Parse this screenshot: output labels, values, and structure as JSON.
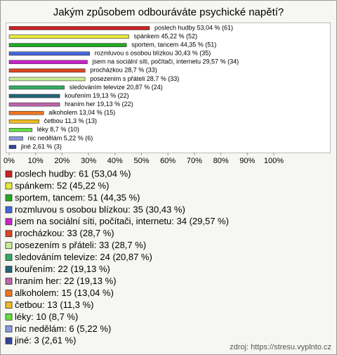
{
  "chart_data": {
    "type": "hbar",
    "title": "Jakým způsobem odbouráváte psychické napětí?",
    "values": [
      53.04,
      45.22,
      44.35,
      30.43,
      29.57,
      28.7,
      28.7,
      20.87,
      19.13,
      19.13,
      13.04,
      11.3,
      8.7,
      5.22,
      2.61
    ],
    "value_labels": [
      "poslech hudby 53,04 % (61)",
      "spánkem 45,22 % (52)",
      "sportem, tancem 44,35 % (51)",
      "rozmluvou s osobou blízkou 30,43 % (35)",
      "jsem na sociální síti, počítači, internetu 29,57 % (34)",
      "procházkou 28,7 % (33)",
      "posezením s přáteli 28,7 % (33)",
      "sledováním televize 20,87 % (24)",
      "kouřením 19,13 % (22)",
      "hraním her 19,13 % (22)",
      "alkoholem 13,04 % (15)",
      "četbou 11,3 % (13)",
      "léky 8,7 % (10)",
      "nic nedělám 5,22 % (6)",
      "jiné 2,61 % (3)"
    ],
    "colors": [
      "#cc2222",
      "#e8e83a",
      "#22aa22",
      "#4466dd",
      "#cc22cc",
      "#dd4422",
      "#c8ec96",
      "#33aa66",
      "#226677",
      "#bb66aa",
      "#ee7722",
      "#eebb22",
      "#66dd44",
      "#8899dd",
      "#334499"
    ],
    "legend_labels": [
      "poslech hudby: 61 (53,04 %)",
      "spánkem: 52 (45,22 %)",
      "sportem, tancem: 51 (44,35 %)",
      "rozmluvou s osobou blízkou: 35 (30,43 %)",
      "jsem na sociální síti, počítači, internetu: 34 (29,57 %)",
      "procházkou: 33 (28,7 %)",
      "posezením s přáteli: 33 (28,7 %)",
      "sledováním televize: 24 (20,87 %)",
      "kouřením: 22 (19,13 %)",
      "hraním her: 22 (19,13 %)",
      "alkoholem: 15 (13,04 %)",
      "četbou: 13 (11,3 %)",
      "léky: 10 (8,7 %)",
      "nic nedělám: 6 (5,22 %)",
      "jiné: 3 (2,61 %)"
    ],
    "xlim": [
      0,
      100
    ],
    "xticks": [
      {
        "value": 0,
        "label": "0%"
      },
      {
        "value": 10,
        "label": "10%"
      },
      {
        "value": 20,
        "label": "20%"
      },
      {
        "value": 30,
        "label": "30%"
      },
      {
        "value": 40,
        "label": "40%"
      },
      {
        "value": 50,
        "label": "50%"
      },
      {
        "value": 60,
        "label": "60%"
      },
      {
        "value": 70,
        "label": "70%"
      },
      {
        "value": 80,
        "label": "80%"
      },
      {
        "value": 90,
        "label": "90%"
      },
      {
        "value": 100,
        "label": "100%"
      }
    ],
    "source": "zdroj: https://stresu.vyplnto.cz"
  }
}
